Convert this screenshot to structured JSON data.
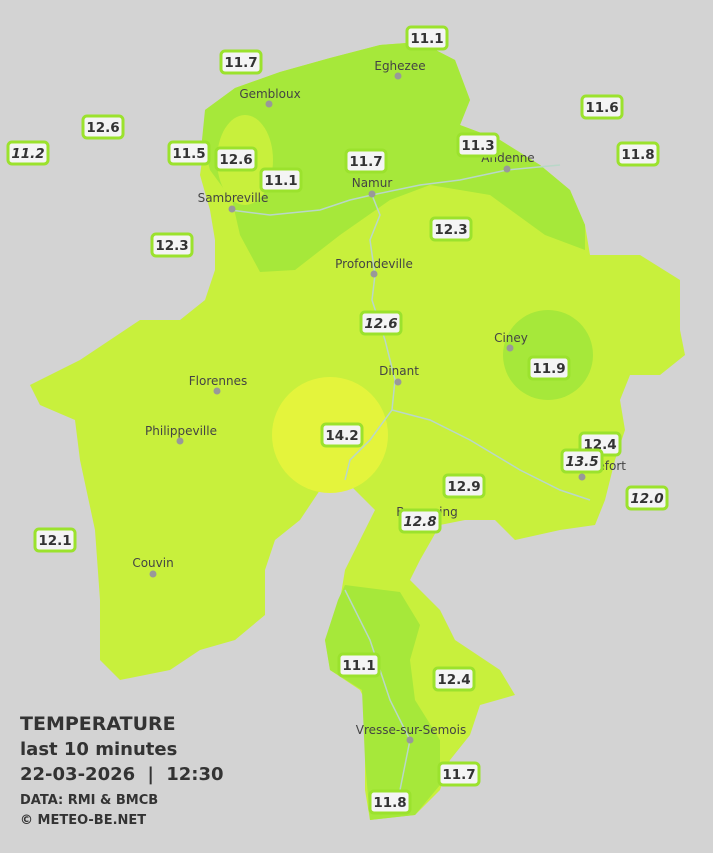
{
  "legend": {
    "title": "TEMPERATURE",
    "subtitle": "last 10 minutes",
    "timestamp": "22-03-2026 | 12:30",
    "source": "DATA: RMI & BMCB",
    "copyright": "© METEO-BE.NET"
  },
  "cities": [
    "Eghezee",
    "Gembloux",
    "Andenne",
    "Namur",
    "Sambreville",
    "Profondeville",
    "Ciney",
    "Dinant",
    "Florennes",
    "Philippeville",
    "Rochefort",
    "Beauraing",
    "Couvin",
    "Vresse-sur-Semois"
  ],
  "stations": [
    {
      "value": "11.1"
    },
    {
      "value": "11.7"
    },
    {
      "value": "11.6"
    },
    {
      "value": "12.6"
    },
    {
      "value": "11.2",
      "italic": true
    },
    {
      "value": "11.5"
    },
    {
      "value": "12.6"
    },
    {
      "value": "11.3"
    },
    {
      "value": "11.8"
    },
    {
      "value": "11.7"
    },
    {
      "value": "11.1"
    },
    {
      "value": "12.3"
    },
    {
      "value": "12.3"
    },
    {
      "value": "12.6",
      "italic": true
    },
    {
      "value": "11.9"
    },
    {
      "value": "14.2"
    },
    {
      "value": "12.4"
    },
    {
      "value": "13.5",
      "italic": true
    },
    {
      "value": "12.0",
      "italic": true
    },
    {
      "value": "12.9"
    },
    {
      "value": "12.8",
      "italic": true
    },
    {
      "value": "12.1"
    },
    {
      "value": "11.1"
    },
    {
      "value": "12.4"
    },
    {
      "value": "11.7"
    },
    {
      "value": "11.8"
    }
  ]
}
